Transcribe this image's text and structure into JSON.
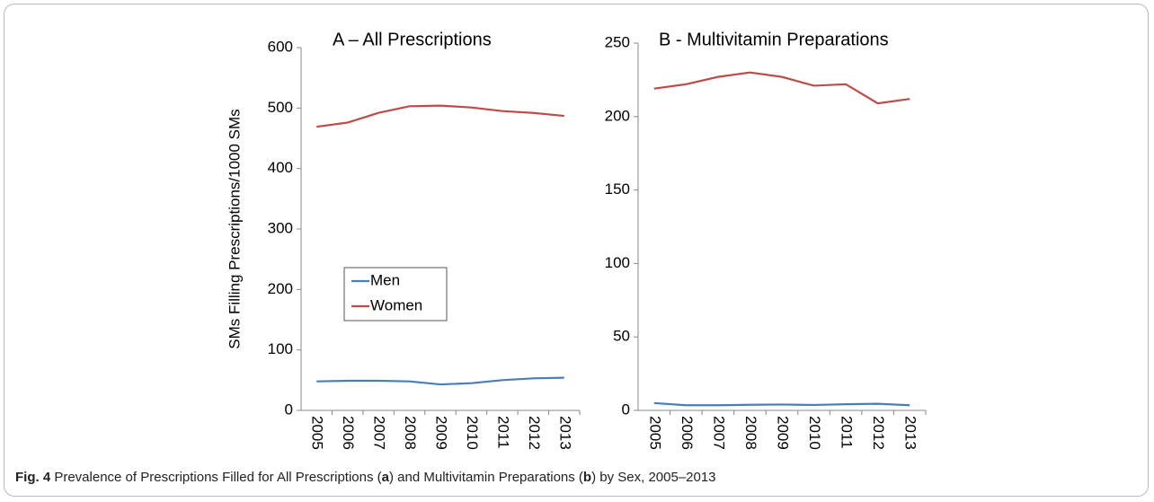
{
  "chart_data": [
    {
      "type": "line",
      "title": "A – All Prescriptions",
      "y_label": "SMs Filling Prescriptions/1000 SMs",
      "categories": [
        "2005",
        "2006",
        "2007",
        "2008",
        "2009",
        "2010",
        "2011",
        "2012",
        "2013"
      ],
      "series": [
        {
          "name": "Men",
          "color": "#4a7ebb",
          "values": [
            48,
            49,
            49,
            48,
            43,
            45,
            50,
            53,
            54
          ]
        },
        {
          "name": "Women",
          "color": "#be4b48",
          "values": [
            469,
            476,
            492,
            503,
            504,
            501,
            495,
            492,
            487
          ]
        }
      ],
      "ylim": [
        0,
        600
      ],
      "yticks": [
        0,
        100,
        200,
        300,
        400,
        500,
        600
      ],
      "grid": false,
      "legend": "left"
    },
    {
      "type": "line",
      "title": "B - Multivitamin Preparations",
      "categories": [
        "2005",
        "2006",
        "2007",
        "2008",
        "2009",
        "2010",
        "2011",
        "2012",
        "2013"
      ],
      "series": [
        {
          "color": "#4a7ebb",
          "values": [
            5,
            3.5,
            3.5,
            3.8,
            4,
            3.7,
            4.2,
            4.5,
            3.5
          ]
        },
        {
          "color": "#be4b48",
          "values": [
            219,
            222,
            227,
            230,
            227,
            221,
            222,
            209,
            212
          ]
        }
      ],
      "ylim": [
        0,
        250
      ],
      "yticks": [
        0,
        50,
        100,
        150,
        200,
        250
      ],
      "grid": false
    }
  ],
  "caption": [
    "Fig. 4",
    " Prevalence of Prescriptions Filled for All Prescriptions (",
    "a",
    ") and Multivitamin Preparations (",
    "b",
    ") by Sex, 2005–2013"
  ]
}
